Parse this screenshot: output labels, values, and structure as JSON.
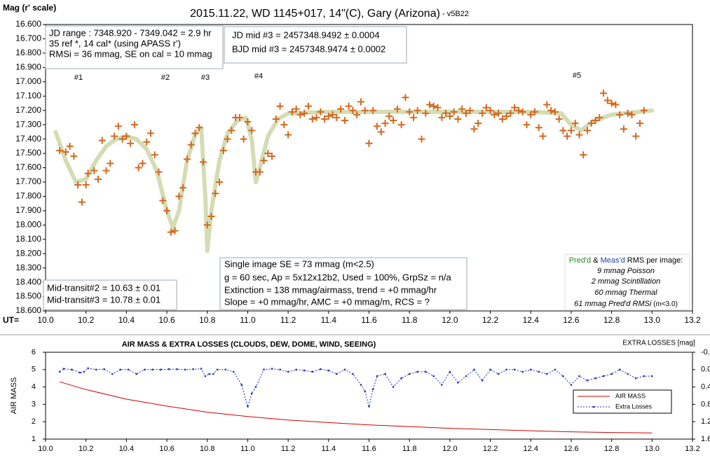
{
  "chart_data": [
    {
      "type": "scatter",
      "title": "2015.11.22, WD 1145+017, 14\"(C), Gary (Arizona)",
      "subtitle": " - v5B22",
      "y_label": "Mag (r' scale)",
      "x_label": "UT=",
      "xlim": [
        10.0,
        13.2
      ],
      "xticks": [
        {
          "value": 10.0,
          "label": "10.0"
        },
        10.2,
        10.4,
        10.6,
        10.8,
        {
          "value": 11.0,
          "label": "11.0"
        },
        11.2,
        11.4,
        11.6,
        11.8,
        {
          "value": 12.0,
          "label": "12.0"
        },
        12.2,
        12.4,
        12.6,
        12.8,
        {
          "value": 13.0,
          "label": "13.0"
        },
        13.2
      ],
      "ylim": [
        18.6,
        16.6
      ],
      "yticks": [
        {
          "value": 16.6,
          "label": "16.600"
        },
        {
          "value": 16.7,
          "label": "16.700"
        },
        {
          "value": 16.8,
          "label": "16.800"
        },
        {
          "value": 16.9,
          "label": "16.900"
        },
        {
          "value": 17.0,
          "label": "17.000"
        },
        {
          "value": 17.1,
          "label": "17.100"
        },
        {
          "value": 17.2,
          "label": "17.200"
        },
        {
          "value": 17.3,
          "label": "17.300"
        },
        {
          "value": 17.4,
          "label": "17.400"
        },
        {
          "value": 17.5,
          "label": "17.500"
        },
        {
          "value": 17.6,
          "label": "17.600"
        },
        {
          "value": 17.7,
          "label": "17.700"
        },
        {
          "value": 17.8,
          "label": "17.800"
        },
        {
          "value": 17.9,
          "label": "17.900"
        },
        {
          "value": 18.0,
          "label": "18.000"
        },
        {
          "value": 18.1,
          "label": "18.100"
        },
        {
          "value": 18.2,
          "label": "18.200"
        },
        {
          "value": 18.3,
          "label": "18.300"
        },
        {
          "value": 18.4,
          "label": "18.400"
        },
        {
          "value": 18.5,
          "label": "18.500"
        },
        {
          "value": 18.6,
          "label": "18.600"
        }
      ],
      "series": [
        {
          "type": "scatter",
          "color": "#d2691e",
          "x": [
            10.07,
            10.1,
            10.12,
            10.14,
            10.16,
            10.18,
            10.2,
            10.21,
            10.24,
            10.26,
            10.28,
            10.3,
            10.32,
            10.34,
            10.36,
            10.38,
            10.4,
            10.42,
            10.44,
            10.46,
            10.48,
            10.5,
            10.52,
            10.54,
            10.56,
            10.58,
            10.6,
            10.62,
            10.64,
            10.66,
            10.68,
            10.7,
            10.72,
            10.74,
            10.76,
            10.78,
            10.8,
            10.82,
            10.84,
            10.86,
            10.88,
            10.9,
            10.92,
            10.94,
            10.96,
            10.98,
            11.0,
            11.02,
            11.04,
            11.06,
            11.08,
            11.1,
            11.12,
            11.14,
            11.16,
            11.18,
            11.2,
            11.22,
            11.24,
            11.26,
            11.28,
            11.3,
            11.32,
            11.34,
            11.36,
            11.38,
            11.4,
            11.42,
            11.44,
            11.46,
            11.48,
            11.5,
            11.52,
            11.54,
            11.56,
            11.58,
            11.6,
            11.62,
            11.64,
            11.66,
            11.68,
            11.7,
            11.72,
            11.74,
            11.76,
            11.78,
            11.8,
            11.82,
            11.84,
            11.86,
            11.88,
            11.9,
            11.92,
            11.94,
            11.96,
            11.98,
            12.0,
            12.02,
            12.04,
            12.06,
            12.08,
            12.1,
            12.12,
            12.14,
            12.16,
            12.18,
            12.2,
            12.22,
            12.24,
            12.26,
            12.28,
            12.3,
            12.32,
            12.34,
            12.36,
            12.38,
            12.4,
            12.42,
            12.44,
            12.46,
            12.48,
            12.5,
            12.52,
            12.54,
            12.56,
            12.58,
            12.6,
            12.62,
            12.64,
            12.66,
            12.68,
            12.7,
            12.72,
            12.74,
            12.76,
            12.78,
            12.8,
            12.82,
            12.84,
            12.86,
            12.88,
            12.9,
            12.92,
            12.94,
            12.96
          ],
          "values": [
            17.48,
            17.49,
            17.45,
            17.52,
            17.72,
            17.84,
            17.72,
            17.64,
            17.62,
            17.68,
            17.41,
            17.62,
            17.57,
            17.38,
            17.31,
            17.4,
            17.38,
            17.43,
            17.3,
            17.6,
            17.57,
            17.42,
            17.36,
            17.51,
            17.63,
            17.83,
            17.9,
            18.05,
            18.04,
            17.8,
            17.74,
            17.54,
            17.44,
            17.36,
            17.32,
            17.56,
            18.0,
            17.94,
            17.78,
            17.7,
            17.48,
            17.4,
            17.34,
            17.25,
            17.25,
            17.4,
            17.28,
            17.34,
            17.63,
            17.63,
            17.55,
            17.5,
            17.52,
            17.26,
            17.17,
            17.3,
            17.37,
            17.21,
            17.19,
            17.23,
            17.22,
            17.17,
            17.26,
            17.25,
            17.21,
            17.26,
            17.24,
            17.23,
            17.25,
            17.19,
            17.27,
            17.17,
            17.2,
            17.23,
            17.14,
            17.2,
            17.43,
            17.2,
            17.31,
            17.35,
            17.29,
            17.24,
            17.27,
            17.19,
            17.3,
            17.11,
            17.21,
            17.25,
            17.2,
            17.4,
            17.22,
            17.16,
            17.17,
            17.18,
            17.25,
            17.22,
            17.24,
            17.21,
            17.26,
            17.19,
            17.22,
            17.2,
            17.33,
            17.29,
            17.22,
            17.18,
            17.2,
            17.23,
            17.22,
            17.26,
            17.24,
            17.22,
            17.18,
            17.2,
            17.21,
            17.3,
            17.23,
            17.21,
            17.32,
            17.38,
            17.16,
            17.2,
            17.21,
            17.26,
            17.34,
            17.38,
            17.34,
            17.29,
            17.37,
            17.51,
            17.34,
            17.29,
            17.27,
            17.25,
            17.08,
            17.13,
            17.15,
            17.16,
            17.23,
            17.33,
            17.22,
            17.23,
            17.38,
            17.29,
            17.2
          ]
        },
        {
          "type": "line",
          "color": "#d4dcb4",
          "x": [
            10.05,
            10.1,
            10.15,
            10.2,
            10.25,
            10.3,
            10.35,
            10.4,
            10.45,
            10.5,
            10.55,
            10.6,
            10.63,
            10.66,
            10.7,
            10.74,
            10.77,
            10.79,
            10.8,
            10.82,
            10.86,
            10.9,
            10.95,
            10.99,
            11.02,
            11.04,
            11.06,
            11.1,
            11.15,
            11.2,
            11.4,
            11.6,
            11.8,
            12.0,
            12.2,
            12.4,
            12.55,
            12.6,
            12.65,
            12.7,
            12.8,
            13.0
          ],
          "values": [
            17.35,
            17.55,
            17.7,
            17.68,
            17.55,
            17.45,
            17.4,
            17.38,
            17.4,
            17.47,
            17.62,
            17.9,
            18.02,
            17.9,
            17.55,
            17.37,
            17.32,
            17.8,
            18.18,
            17.9,
            17.55,
            17.36,
            17.27,
            17.25,
            17.4,
            17.7,
            17.6,
            17.38,
            17.26,
            17.22,
            17.21,
            17.21,
            17.21,
            17.21,
            17.21,
            17.21,
            17.22,
            17.3,
            17.34,
            17.28,
            17.23,
            17.2
          ]
        }
      ],
      "annotations": [
        "#1",
        "#2",
        "#3",
        "#4",
        "#5"
      ],
      "text_boxes": [
        {
          "lines": [
            "JD range : 7348.920 - 7349.042 = 2.9 hr",
            "35 ref *, 14 cal* (using APASS r')",
            "RMSi = 36 mmag, SE on cal = 10 mmag"
          ]
        },
        {
          "lines": [
            "JD mid #3 = 2457348.9492 ± 0.0004",
            "BJD mid #3 = 2457348.9474 ± 0.0002"
          ]
        },
        {
          "lines": [
            "Mid-transit#2 = 10.63 ± 0.01",
            "Mid-transit#3 = 10.78 ± 0.01"
          ]
        },
        {
          "lines": [
            "Single image SE = 73 mmag (m<2.5)",
            "g = 60 sec, Ap = 5x12x12b2, Used = 100%, GrpSz = n/a",
            "Extinction = 138 mmag/airmass, trend = +0 mmag/hr",
            "Slope = +0 mmag/hr, AMC = +0 mmag/m, RCS = ?"
          ]
        }
      ],
      "rms_box": {
        "heading": [
          "Pred'd",
          " & ",
          "Meas'd",
          " RMS per image:"
        ],
        "lines": [
          "9 mmag Poisson",
          "2  mmag Scintillation",
          "60  mmag Thermal",
          "61 mmag Pred'd  RMSi"
        ],
        "note": " (m<3.0)"
      }
    },
    {
      "type": "line",
      "title": "AIR MASS & EXTRA LOSSES (CLOUDS, DEW, DOME, WIND, SEEING)",
      "y_label": "AIR MASS",
      "y2_label": "EXTRA LOSSES [mag]",
      "xlim": [
        10.0,
        13.2
      ],
      "xticks": [
        {
          "value": 10.0,
          "label": "10.0"
        },
        10.2,
        10.4,
        10.6,
        10.8,
        {
          "value": 11.0,
          "label": "11.0"
        },
        11.2,
        11.4,
        11.6,
        11.8,
        {
          "value": 12.0,
          "label": "12.0"
        },
        12.2,
        12.4,
        12.6,
        12.8,
        {
          "value": 13.0,
          "label": "13.0"
        },
        13.2
      ],
      "ylim": [
        1,
        6
      ],
      "yticks": [
        1,
        2,
        3,
        4,
        5,
        6
      ],
      "y2lim": [
        1.6,
        -0.4
      ],
      "y2ticks": [
        -0.4,
        {
          "value": 0,
          "label": "0.0"
        },
        0.4,
        0.8,
        1.2,
        1.6
      ],
      "legend": "lower right",
      "series": [
        {
          "name": "AIR MASS",
          "color": "#d00000",
          "x": [
            10.07,
            10.2,
            10.4,
            10.6,
            10.8,
            11.0,
            11.2,
            11.4,
            11.6,
            11.8,
            12.0,
            12.2,
            12.4,
            12.6,
            12.8,
            13.0
          ],
          "values": [
            4.3,
            3.85,
            3.3,
            2.9,
            2.55,
            2.3,
            2.1,
            1.95,
            1.82,
            1.72,
            1.62,
            1.55,
            1.48,
            1.42,
            1.38,
            1.35
          ]
        },
        {
          "name": "Extra Losses",
          "color": "#1f2fbf",
          "axis": "y2",
          "dashed": true,
          "markers": true,
          "x": [
            10.07,
            10.09,
            10.13,
            10.17,
            10.19,
            10.21,
            10.25,
            10.29,
            10.33,
            10.37,
            10.41,
            10.45,
            10.49,
            10.53,
            10.57,
            10.61,
            10.65,
            10.69,
            10.73,
            10.77,
            10.79,
            10.81,
            10.83,
            10.85,
            10.89,
            10.93,
            10.97,
            11.0,
            11.02,
            11.04,
            11.08,
            11.12,
            11.16,
            11.2,
            11.24,
            11.28,
            11.32,
            11.36,
            11.4,
            11.44,
            11.48,
            11.52,
            11.56,
            11.58,
            11.6,
            11.62,
            11.64,
            11.68,
            11.72,
            11.76,
            11.8,
            11.84,
            11.88,
            11.92,
            11.96,
            12.0,
            12.04,
            12.08,
            12.12,
            12.16,
            12.2,
            12.24,
            12.28,
            12.32,
            12.36,
            12.4,
            12.44,
            12.48,
            12.52,
            12.56,
            12.6,
            12.64,
            12.68,
            12.72,
            12.76,
            12.8,
            12.84,
            12.88,
            12.92,
            12.96,
            13.0
          ],
          "values": [
            0.05,
            -0.02,
            0,
            0.07,
            0.05,
            -0.03,
            0,
            -0.01,
            0.1,
            0,
            0,
            0.1,
            0,
            0,
            0,
            -0.01,
            -0.01,
            0,
            -0.01,
            -0.02,
            0.15,
            0.1,
            0.1,
            0,
            0,
            0.05,
            0.35,
            0.85,
            0.55,
            0.4,
            0,
            -0.02,
            0,
            0.05,
            0,
            0.02,
            0.05,
            -0.01,
            0.02,
            0.1,
            0,
            0.1,
            0.35,
            0.5,
            0.85,
            0.45,
            0.15,
            0.1,
            0.4,
            0.2,
            0.1,
            0.05,
            0.05,
            0.15,
            0.35,
            0.05,
            0.3,
            0.15,
            0,
            0.25,
            0,
            0.1,
            0,
            0,
            0.05,
            0,
            0.05,
            0.1,
            0,
            0.15,
            0.35,
            0.15,
            0.25,
            0.2,
            0.15,
            0.1,
            0,
            0.1,
            0.2,
            0.15,
            0.15
          ]
        }
      ]
    }
  ]
}
